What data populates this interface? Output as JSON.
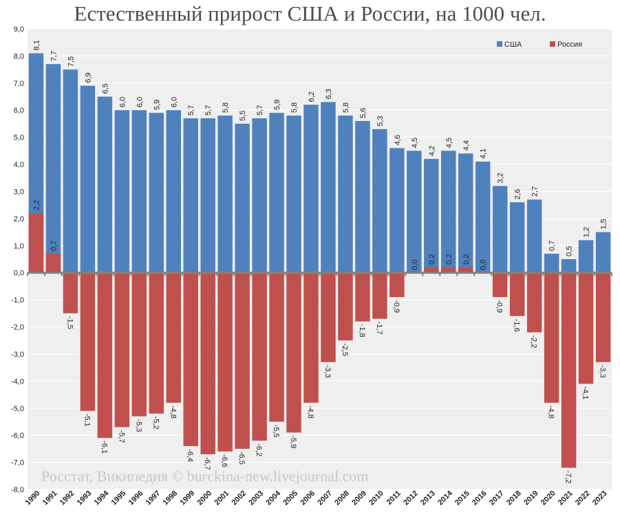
{
  "chart_data": {
    "type": "bar",
    "title": "Естественный прирост США и России, на 1000 чел.",
    "xlabel": "",
    "ylabel": "",
    "ylim": [
      -8,
      9
    ],
    "yticks": [
      "9,0",
      "8,0",
      "7,0",
      "6,0",
      "5,0",
      "4,0",
      "3,0",
      "2,0",
      "1,0",
      "0,0",
      "-1,0",
      "-2,0",
      "-3,0",
      "-4,0",
      "-5,0",
      "-6,0",
      "-7,0",
      "-8,0"
    ],
    "categories": [
      "1990",
      "1991",
      "1992",
      "1993",
      "1994",
      "1995",
      "1996",
      "1997",
      "1998",
      "1999",
      "2000",
      "2001",
      "2002",
      "2003",
      "2004",
      "2005",
      "2006",
      "2007",
      "2008",
      "2009",
      "2010",
      "2011",
      "2012",
      "2013",
      "2014",
      "2015",
      "2016",
      "2017",
      "2018",
      "2019",
      "2020",
      "2021",
      "2022",
      "2023"
    ],
    "grid": true,
    "legend": "top-right",
    "watermark": "Росстат, Википедия © burckina-new.livejournal.com",
    "series": [
      {
        "name": "США",
        "color": "#4f81bd",
        "values": [
          8.1,
          7.7,
          7.5,
          6.9,
          6.5,
          6.0,
          6.0,
          5.9,
          6.0,
          5.7,
          5.7,
          5.8,
          5.5,
          5.7,
          5.9,
          5.8,
          6.2,
          6.3,
          5.8,
          5.6,
          5.3,
          4.6,
          4.5,
          4.2,
          4.5,
          4.4,
          4.1,
          3.2,
          2.6,
          2.7,
          0.7,
          0.5,
          1.2,
          1.5
        ],
        "labels": [
          "8,1",
          "7,7",
          "7,5",
          "6,9",
          "6,5",
          "6,0",
          "6,0",
          "5,9",
          "6,0",
          "5,7",
          "5,7",
          "5,8",
          "5,5",
          "5,7",
          "5,9",
          "5,8",
          "6,2",
          "6,3",
          "5,8",
          "5,6",
          "5,3",
          "4,6",
          "4,5",
          "4,2",
          "4,5",
          "4,4",
          "4,1",
          "3,2",
          "2,6",
          "2,7",
          "0,7",
          "0,5",
          "1,2",
          "1,5"
        ]
      },
      {
        "name": "Россия",
        "color": "#c0504d",
        "values": [
          2.2,
          0.7,
          -1.5,
          -5.1,
          -6.1,
          -5.7,
          -5.3,
          -5.2,
          -4.8,
          -6.4,
          -6.7,
          -6.6,
          -6.5,
          -6.2,
          -5.5,
          -5.9,
          -4.8,
          -3.3,
          -2.5,
          -1.8,
          -1.7,
          -0.9,
          0.0,
          0.2,
          0.2,
          0.2,
          0.0,
          -0.9,
          -1.6,
          -2.2,
          -4.8,
          -7.2,
          -4.1,
          -3.3
        ],
        "labels": [
          "2,2",
          "0,7",
          "-1,5",
          "-5,1",
          "-6,1",
          "-5,7",
          "-5,3",
          "-5,2",
          "-4,8",
          "-6,4",
          "-6,7",
          "-6,6",
          "-6,5",
          "-6,2",
          "-5,5",
          "-5,9",
          "-4,8",
          "-3,3",
          "-2,5",
          "-1,8",
          "-1,7",
          "-0,9",
          "0,0",
          "0,2",
          "0,2",
          "0,2",
          "0,0",
          "-0,9",
          "-1,6",
          "-2,2",
          "-4,8",
          "-7,2",
          "-4,1",
          "-3,3"
        ]
      }
    ]
  }
}
